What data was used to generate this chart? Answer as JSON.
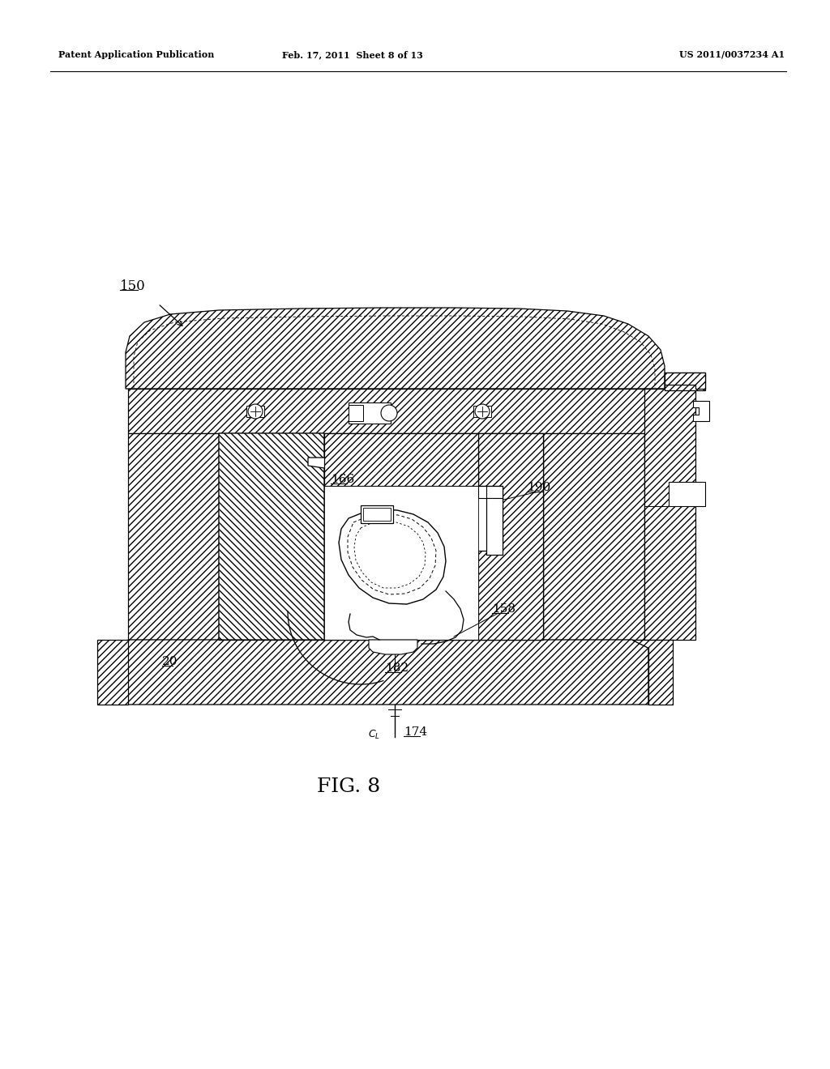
{
  "bg": "#ffffff",
  "lc": "#000000",
  "header_left": "Patent Application Publication",
  "header_mid": "Feb. 17, 2011  Sheet 8 of 13",
  "header_right": "US 2011/0037234 A1",
  "fig_label": "FIG. 8",
  "hfwd": "////",
  "hbck": "\\\\\\\\",
  "lw": 0.9
}
